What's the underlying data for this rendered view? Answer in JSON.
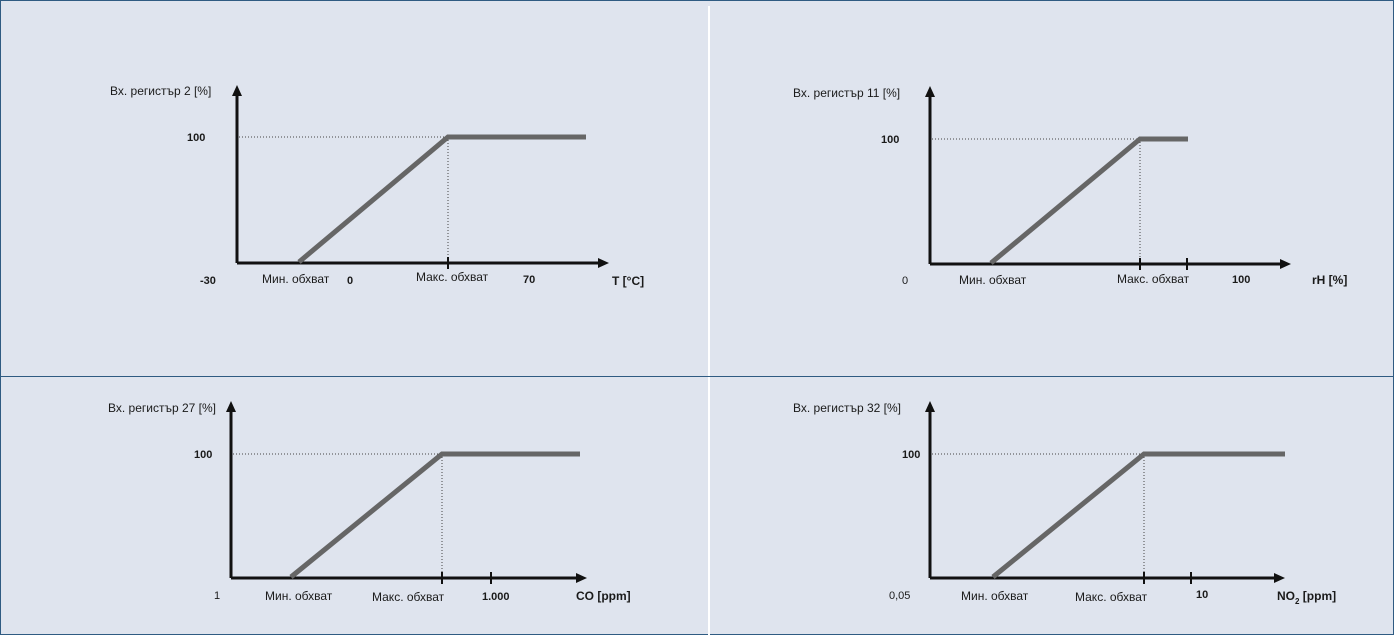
{
  "panels": [
    {
      "y_label": "Вх. регистър 2 [%]",
      "y_tick": "100",
      "x_min": "-30",
      "min_range": "Мин. обхват",
      "x_zero": "0",
      "max_range": "Макс. обхват",
      "x_max": "70",
      "x_unit": "T [°C]"
    },
    {
      "y_label": "Вх. регистър 11 [%]",
      "y_tick": "100",
      "x_min": "0",
      "min_range": "Мин. обхват",
      "max_range": "Макс. обхват",
      "x_max": "100",
      "x_unit": "rH [%]"
    },
    {
      "y_label": "Вх. регистър 27 [%]",
      "y_tick": "100",
      "x_min": "1",
      "min_range": "Мин. обхват",
      "max_range": "Макс. обхват",
      "x_max": "1.000",
      "x_unit": "CO [ppm]"
    },
    {
      "y_label": "Вх. регистър 32 [%]",
      "y_tick": "100",
      "x_min": "0,05",
      "min_range": "Мин. обхват",
      "max_range": "Макс. обхват",
      "x_max": "10",
      "x_unit_main": "NO",
      "x_unit_sub": "2",
      "x_unit_rest": " [ppm]"
    }
  ],
  "colors": {
    "background": "#dfe4ee",
    "border": "#2f5b82",
    "axis": "#111111",
    "curve": "#666666",
    "guide": "#444444"
  }
}
